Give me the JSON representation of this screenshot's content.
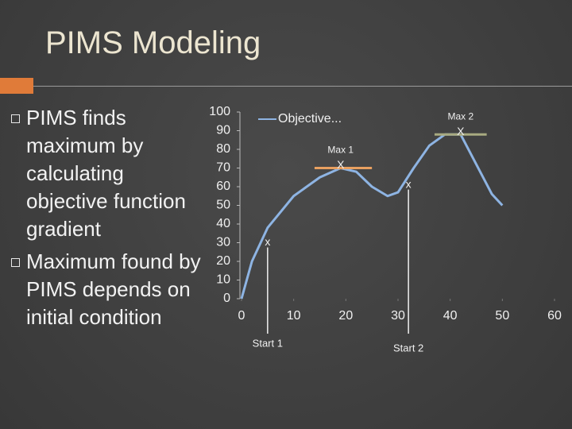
{
  "title": "PIMS Modeling",
  "bullets": [
    "PIMS finds maximum by calculating objective function gradient",
    "Maximum found by PIMS depends on initial condition"
  ],
  "chart_data": {
    "type": "line",
    "x": [
      0,
      2,
      5,
      10,
      15,
      19,
      22,
      25,
      28,
      30,
      33,
      36,
      39,
      42,
      45,
      48,
      50
    ],
    "series": [
      {
        "name": "Objective...",
        "color": "#8eb4e3",
        "values": [
          0,
          20,
          38,
          55,
          65,
          70,
          68,
          60,
          55,
          57,
          70,
          82,
          88,
          88,
          72,
          56,
          50
        ]
      }
    ],
    "xlim": [
      0,
      60
    ],
    "xticks": [
      0,
      10,
      20,
      30,
      40,
      50,
      60
    ],
    "ylim": [
      0,
      100
    ],
    "yticks": [
      0,
      10,
      20,
      30,
      40,
      50,
      60,
      70,
      80,
      90,
      100
    ],
    "legend": "upper left",
    "maxima": [
      {
        "label": "Max 1",
        "marker": "X",
        "x": 19,
        "y": 70,
        "band": [
          14,
          25
        ],
        "color": "#e8a060"
      },
      {
        "label": "Max 2",
        "marker": "X",
        "x": 42,
        "y": 88,
        "band": [
          37,
          47
        ],
        "color": "#a8aa80"
      }
    ],
    "starts": [
      {
        "label": "Start 1",
        "marker": "x",
        "x": 5,
        "y": 30
      },
      {
        "label": "Start 2",
        "marker": "x",
        "x": 32,
        "y": 61
      }
    ]
  }
}
